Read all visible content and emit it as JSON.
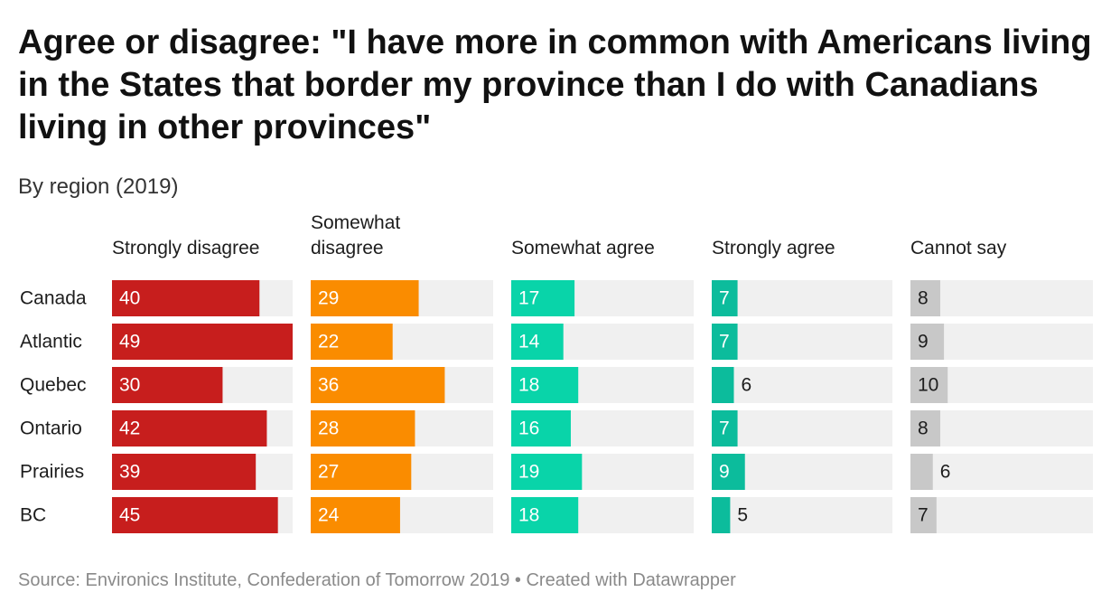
{
  "chart_data": {
    "type": "bar",
    "layout": "small-multiples-horizontal",
    "title": "Agree or disagree: \"I have more in common with Americans living in the States that border my province than I do with Canadians living in other provinces\"",
    "subtitle": "By region (2019)",
    "categories": [
      "Canada",
      "Atlantic",
      "Quebec",
      "Ontario",
      "Prairies",
      "BC"
    ],
    "series": [
      {
        "name": "Strongly disagree",
        "color": "#c71e1d",
        "values": [
          40,
          49,
          30,
          42,
          39,
          45
        ]
      },
      {
        "name": "Somewhat disagree",
        "color": "#fa8c00",
        "values": [
          29,
          22,
          36,
          28,
          27,
          24
        ]
      },
      {
        "name": "Somewhat agree",
        "color": "#09d4a9",
        "values": [
          17,
          14,
          18,
          16,
          19,
          18
        ]
      },
      {
        "name": "Strongly agree",
        "color": "#0cbc9c",
        "values": [
          7,
          7,
          6,
          7,
          9,
          5
        ]
      },
      {
        "name": "Cannot say",
        "color": "#c8c8c8",
        "values": [
          8,
          9,
          10,
          8,
          6,
          7
        ]
      }
    ],
    "xlim": [
      0,
      49
    ],
    "units": "percent",
    "track_color": "#f0f0f0",
    "grid": false,
    "legend": "column headers"
  },
  "footer": {
    "source": "Source: Environics Institute, Confederation of Tomorrow 2019 • Created with Datawrapper"
  }
}
